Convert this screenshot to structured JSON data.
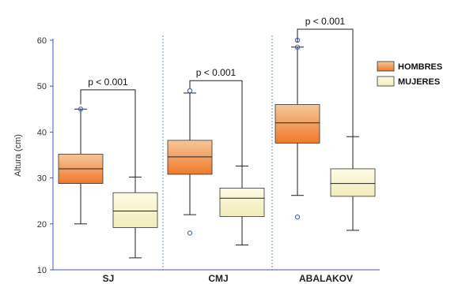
{
  "chart_data": {
    "type": "box",
    "ylabel": "Altura (cm)",
    "ylim": [
      10,
      60
    ],
    "yticks": [
      10,
      20,
      30,
      40,
      50,
      60
    ],
    "categories": [
      "SJ",
      "CMJ",
      "ABALAKOV"
    ],
    "grid": false,
    "legend_placement": "right",
    "series": [
      {
        "name": "HOMBRES",
        "fill_top": "#f4c79a",
        "fill_bottom": "#f07a2a",
        "boxes": [
          {
            "category": "SJ",
            "min": 20,
            "q1": 28.8,
            "median": 32,
            "q3": 35.2,
            "max": 45,
            "outliers": [
              45
            ]
          },
          {
            "category": "CMJ",
            "min": 22,
            "q1": 30.8,
            "median": 34.6,
            "q3": 38.2,
            "max": 48.5,
            "outliers": [
              49,
              18
            ]
          },
          {
            "category": "ABALAKOV",
            "min": 26.2,
            "q1": 37.6,
            "median": 42,
            "q3": 46,
            "max": 58.5,
            "outliers": [
              60,
              58.5,
              21.5
            ]
          }
        ]
      },
      {
        "name": "MUJERES",
        "fill_top": "#fdfbe6",
        "fill_bottom": "#f1ecb8",
        "boxes": [
          {
            "category": "SJ",
            "min": 12.6,
            "q1": 19.2,
            "median": 22.8,
            "q3": 26.8,
            "max": 30.2,
            "outliers": []
          },
          {
            "category": "CMJ",
            "min": 15.4,
            "q1": 21.6,
            "median": 25.6,
            "q3": 27.8,
            "max": 32.6,
            "outliers": []
          },
          {
            "category": "ABALAKOV",
            "min": 18.6,
            "q1": 26,
            "median": 28.8,
            "q3": 32,
            "max": 39,
            "outliers": []
          }
        ]
      }
    ],
    "annotations": [
      {
        "category": "SJ",
        "text": "p < 0.001",
        "level": 49.2
      },
      {
        "category": "CMJ",
        "text": "p < 0.001",
        "level": 51.2
      },
      {
        "category": "ABALAKOV",
        "text": "p < 0.001",
        "level": 62.4
      }
    ],
    "separators": [
      "dotted",
      "blue"
    ]
  }
}
